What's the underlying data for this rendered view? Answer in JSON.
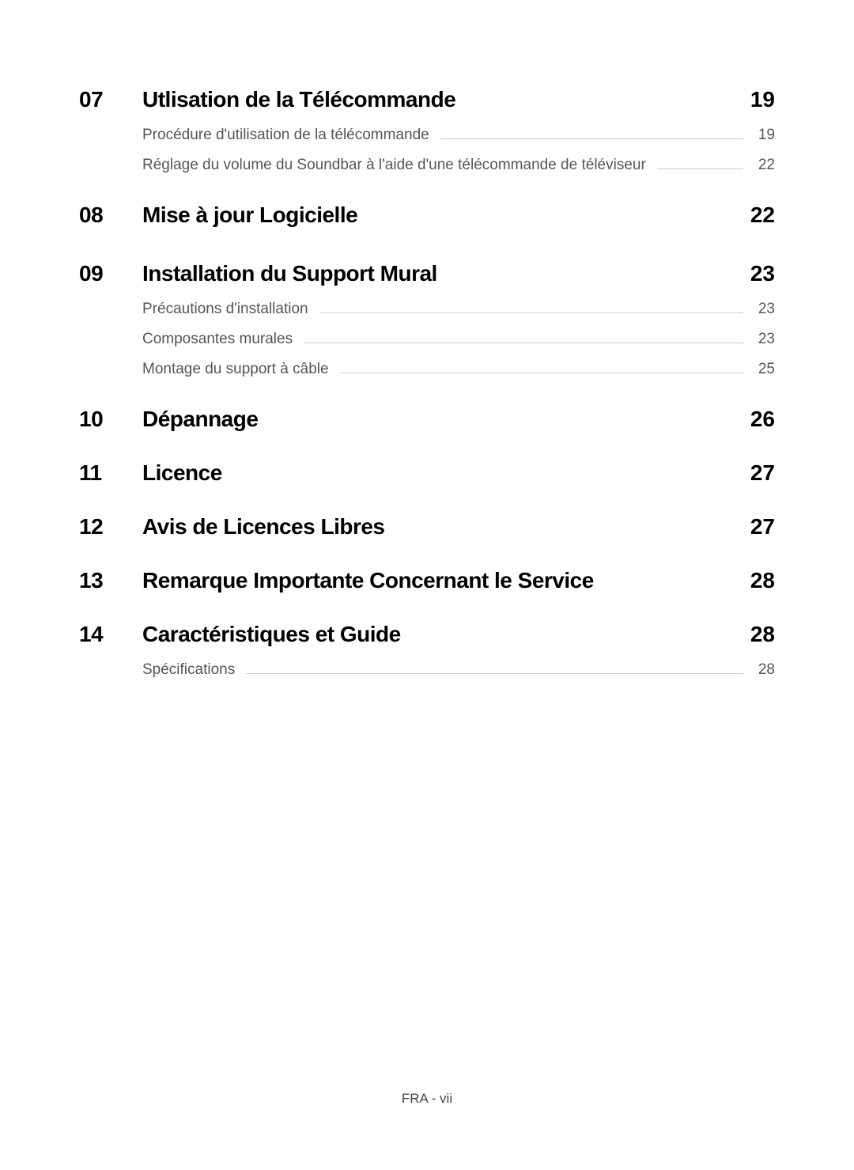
{
  "colors": {
    "background": "#ffffff",
    "text_primary": "#000000",
    "text_sub": "#555555",
    "leader_line": "#cccccc",
    "footer": "#444444"
  },
  "typography": {
    "section_num_fontsize": 28,
    "section_title_fontsize": 28,
    "section_page_fontsize": 28,
    "section_weight": 700,
    "sub_fontsize": 19,
    "sub_weight": 400,
    "footer_fontsize": 17
  },
  "toc": [
    {
      "num": "07",
      "title": "Utlisation de la Télécommande",
      "page": "19",
      "subs": [
        {
          "title": "Procédure d'utilisation de la télécommande",
          "page": "19"
        },
        {
          "title": "Réglage du volume du Soundbar à l'aide d'une télécommande de téléviseur",
          "page": "22"
        }
      ]
    },
    {
      "num": "08",
      "title": "Mise à jour Logicielle",
      "page": "22",
      "subs": []
    },
    {
      "num": "09",
      "title": "Installation du Support Mural",
      "page": "23",
      "subs": [
        {
          "title": "Précautions d'installation",
          "page": "23"
        },
        {
          "title": "Composantes murales",
          "page": "23"
        },
        {
          "title": "Montage du support à câble",
          "page": "25"
        }
      ]
    },
    {
      "num": "10",
      "title": "Dépannage",
      "page": "26",
      "subs": []
    },
    {
      "num": "11",
      "title": "Licence",
      "page": "27",
      "subs": []
    },
    {
      "num": "12",
      "title": "Avis de Licences Libres",
      "page": "27",
      "subs": []
    },
    {
      "num": "13",
      "title": "Remarque Importante Concernant le Service",
      "page": "28",
      "subs": []
    },
    {
      "num": "14",
      "title": "Caractéristiques et Guide",
      "page": "28",
      "subs": [
        {
          "title": "Spécifications",
          "page": "28"
        }
      ]
    }
  ],
  "footer": "FRA - vii"
}
